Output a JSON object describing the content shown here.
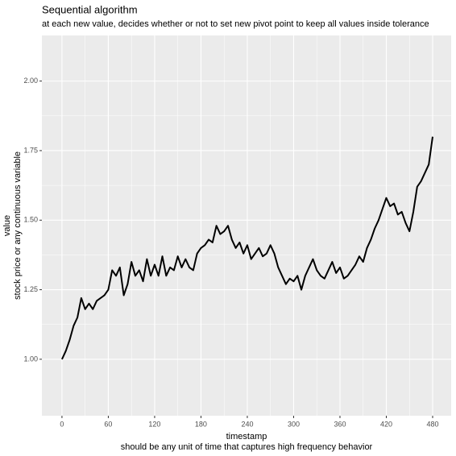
{
  "chart_data": {
    "type": "line",
    "title": "Sequential algorithm",
    "subtitle": "at each new value, decides whether or not to set new pivot point to keep all values inside tolerance",
    "y_label": [
      "value",
      "stock price or any continuous variable"
    ],
    "x_label": [
      "timestamp",
      "should be any unit of time that captures high frequency behavior"
    ],
    "color": "#000000",
    "grid": true,
    "xlim": [
      -26,
      504
    ],
    "ylim": [
      0.797,
      2.164
    ],
    "xticks": [
      0,
      60,
      120,
      180,
      240,
      300,
      360,
      420,
      480
    ],
    "yticks": [
      {
        "value": 1,
        "label": "1.00"
      },
      {
        "value": 1.25,
        "label": "1.25"
      },
      {
        "value": 1.5,
        "label": "1.50"
      },
      {
        "value": 1.75,
        "label": "1.75"
      },
      {
        "value": 2,
        "label": "2.00"
      }
    ],
    "x": [
      0,
      5,
      10,
      15,
      20,
      25,
      30,
      35,
      40,
      45,
      50,
      55,
      60,
      65,
      70,
      75,
      80,
      85,
      90,
      95,
      100,
      105,
      110,
      115,
      120,
      125,
      130,
      135,
      140,
      145,
      150,
      155,
      160,
      165,
      170,
      175,
      180,
      185,
      190,
      195,
      200,
      205,
      210,
      215,
      220,
      225,
      230,
      235,
      240,
      245,
      250,
      255,
      260,
      265,
      270,
      275,
      280,
      285,
      290,
      295,
      300,
      305,
      310,
      315,
      320,
      325,
      330,
      335,
      340,
      345,
      350,
      355,
      360,
      365,
      370,
      375,
      380,
      385,
      390,
      395,
      400,
      405,
      410,
      415,
      420,
      425,
      430,
      435,
      440,
      445,
      450,
      455,
      460,
      465,
      470,
      475,
      480
    ],
    "values": [
      1.0,
      1.03,
      1.07,
      1.12,
      1.15,
      1.22,
      1.18,
      1.2,
      1.18,
      1.21,
      1.22,
      1.23,
      1.25,
      1.32,
      1.3,
      1.33,
      1.23,
      1.27,
      1.35,
      1.3,
      1.32,
      1.28,
      1.36,
      1.3,
      1.34,
      1.3,
      1.37,
      1.3,
      1.33,
      1.32,
      1.37,
      1.33,
      1.36,
      1.33,
      1.32,
      1.38,
      1.4,
      1.41,
      1.43,
      1.42,
      1.48,
      1.45,
      1.46,
      1.48,
      1.43,
      1.4,
      1.42,
      1.38,
      1.41,
      1.36,
      1.38,
      1.4,
      1.37,
      1.38,
      1.41,
      1.38,
      1.33,
      1.3,
      1.27,
      1.29,
      1.28,
      1.3,
      1.25,
      1.3,
      1.33,
      1.36,
      1.32,
      1.3,
      1.29,
      1.32,
      1.35,
      1.31,
      1.33,
      1.29,
      1.3,
      1.32,
      1.34,
      1.37,
      1.35,
      1.4,
      1.43,
      1.47,
      1.5,
      1.54,
      1.58,
      1.55,
      1.56,
      1.52,
      1.53,
      1.49,
      1.46,
      1.53,
      1.62,
      1.64,
      1.67,
      1.7,
      1.8
    ]
  }
}
